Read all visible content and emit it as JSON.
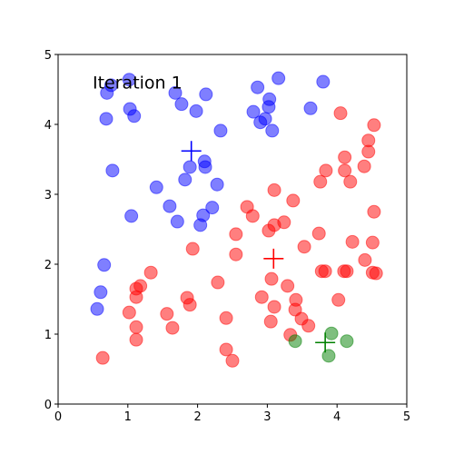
{
  "chart_data": {
    "type": "scatter",
    "annotation": "Iteration 1",
    "xlim": [
      0,
      5
    ],
    "ylim": [
      0,
      5
    ],
    "xticks": [
      0,
      1,
      2,
      3,
      4,
      5
    ],
    "yticks": [
      0,
      1,
      2,
      3,
      4,
      5
    ],
    "grid": false,
    "series": [
      {
        "color": "#0000ff",
        "marker": "circle",
        "x": [
          1.02,
          0.76,
          0.7,
          1.03,
          1.09,
          0.69,
          1.68,
          1.77,
          2.12,
          1.98,
          2.33,
          3.16,
          2.86,
          3.03,
          3.02,
          2.8,
          2.97,
          2.9,
          3.07,
          3.62,
          3.8,
          0.78,
          1.89,
          2.1,
          2.11,
          1.82,
          2.28,
          1.41,
          1.6,
          2.21,
          2.08,
          1.71,
          2.04,
          1.05,
          0.66,
          0.61,
          0.56
        ],
        "values": [
          4.64,
          4.56,
          4.45,
          4.22,
          4.12,
          4.08,
          4.45,
          4.29,
          4.43,
          4.19,
          3.91,
          4.66,
          4.53,
          4.36,
          4.25,
          4.18,
          4.08,
          4.03,
          3.91,
          4.23,
          4.61,
          3.34,
          3.39,
          3.47,
          3.39,
          3.21,
          3.14,
          3.1,
          2.83,
          2.81,
          2.7,
          2.61,
          2.56,
          2.69,
          1.99,
          1.6,
          1.36
        ]
      },
      {
        "color": "#ff0000",
        "marker": "circle",
        "x": [
          4.05,
          4.53,
          4.45,
          4.45,
          4.11,
          4.39,
          3.84,
          4.11,
          4.19,
          3.76,
          3.1,
          3.37,
          2.71,
          2.79,
          3.24,
          3.1,
          3.02,
          4.53,
          2.55,
          3.74,
          4.22,
          4.51,
          3.53,
          1.93,
          2.55,
          4.4,
          3.78,
          3.83,
          4.1,
          4.14,
          4.51,
          4.56,
          3.06,
          1.33,
          2.29,
          3.29,
          1.18,
          1.12,
          1.12,
          1.85,
          1.89,
          2.92,
          3.41,
          4.02,
          3.1,
          3.4,
          1.02,
          1.56,
          2.41,
          3.49,
          3.59,
          3.05,
          1.64,
          1.12,
          1.12,
          3.33,
          2.41,
          2.5,
          0.64
        ],
        "values": [
          4.16,
          3.99,
          3.77,
          3.61,
          3.53,
          3.4,
          3.34,
          3.34,
          3.18,
          3.18,
          3.06,
          2.91,
          2.82,
          2.69,
          2.6,
          2.56,
          2.48,
          2.75,
          2.43,
          2.44,
          2.32,
          2.31,
          2.25,
          2.22,
          2.14,
          2.06,
          1.9,
          1.9,
          1.9,
          1.9,
          1.88,
          1.87,
          1.79,
          1.88,
          1.74,
          1.69,
          1.69,
          1.65,
          1.53,
          1.52,
          1.42,
          1.53,
          1.49,
          1.49,
          1.39,
          1.35,
          1.31,
          1.29,
          1.23,
          1.22,
          1.12,
          1.18,
          1.09,
          1.1,
          0.92,
          0.99,
          0.78,
          0.62,
          0.66
        ]
      },
      {
        "color": "#008000",
        "marker": "circle",
        "x": [
          3.92,
          3.4,
          4.14,
          3.88
        ],
        "values": [
          1.01,
          0.9,
          0.9,
          0.69
        ]
      },
      {
        "color": "#0000ff",
        "marker": "plus",
        "x": [
          1.91
        ],
        "values": [
          3.62
        ]
      },
      {
        "color": "#ff0000",
        "marker": "plus",
        "x": [
          3.09
        ],
        "values": [
          2.08
        ]
      },
      {
        "color": "#008000",
        "marker": "plus",
        "x": [
          3.83
        ],
        "values": [
          0.88
        ]
      }
    ]
  }
}
